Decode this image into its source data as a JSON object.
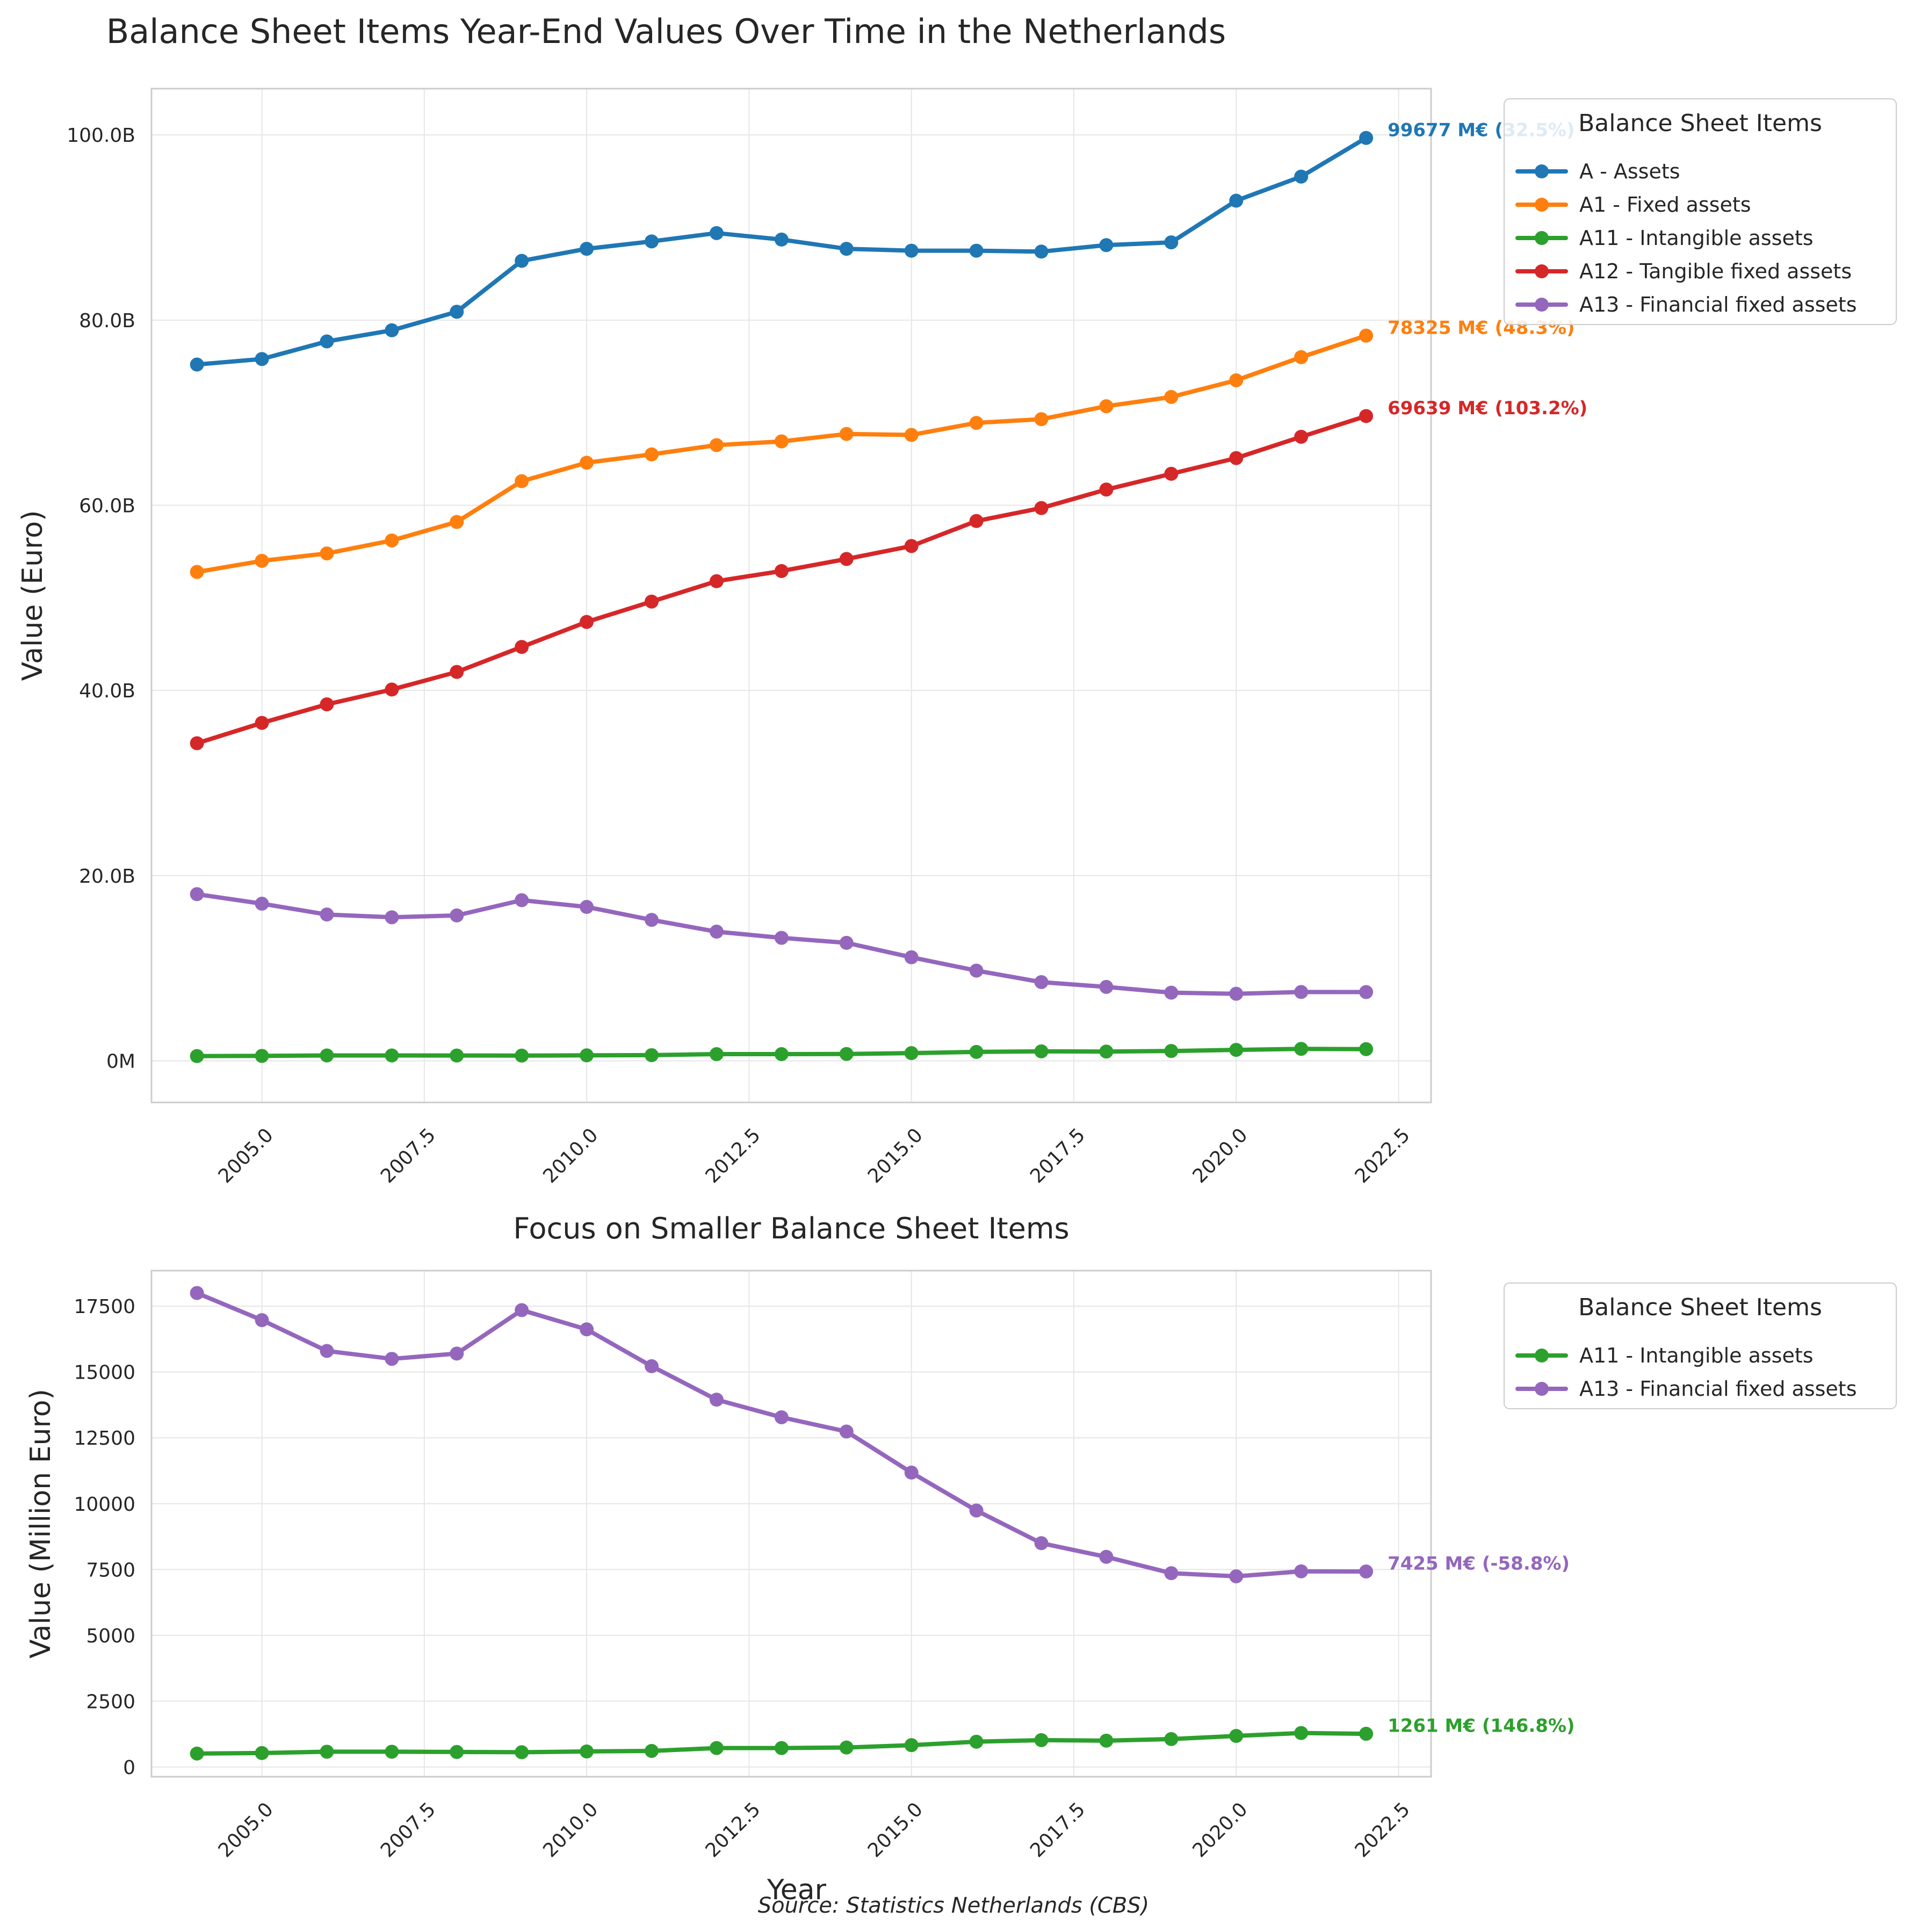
{
  "source_note": "Source: Statistics Netherlands (CBS)",
  "chart_data": [
    {
      "type": "line",
      "title": "Balance Sheet Items Year-End Values Over Time in the Netherlands",
      "xlabel": "",
      "ylabel": "Value (Euro)",
      "xlim": [
        2003.3,
        2023.0
      ],
      "ylim": [
        -4500,
        105000
      ],
      "xticks": [
        2005.0,
        2007.5,
        2010.0,
        2012.5,
        2015.0,
        2017.5,
        2020.0,
        2022.5
      ],
      "xtick_labels": [
        "2005.0",
        "2007.5",
        "2010.0",
        "2012.5",
        "2015.0",
        "2017.5",
        "2020.0",
        "2022.5"
      ],
      "yticks": [
        0,
        20000,
        40000,
        60000,
        80000,
        100000
      ],
      "ytick_labels": [
        "0M",
        "20.0B",
        "40.0B",
        "60.0B",
        "80.0B",
        "100.0B"
      ],
      "grid": true,
      "legend": {
        "title": "Balance Sheet Items",
        "placement": "outside upper right"
      },
      "x": [
        2004,
        2005,
        2006,
        2007,
        2008,
        2009,
        2010,
        2011,
        2012,
        2013,
        2014,
        2015,
        2016,
        2017,
        2018,
        2019,
        2020,
        2021,
        2022
      ],
      "series": [
        {
          "name": "A - Assets",
          "color": "#1f77b4",
          "values": [
            75200,
            75800,
            77700,
            78900,
            80900,
            86400,
            87700,
            88500,
            89400,
            88700,
            87700,
            87500,
            87500,
            87400,
            88100,
            88400,
            92900,
            95500,
            99677
          ],
          "annotation": "99677 M€ (32.5%)"
        },
        {
          "name": "A1 - Fixed assets",
          "color": "#ff7f0e",
          "values": [
            52800,
            54000,
            54800,
            56200,
            58200,
            62600,
            64600,
            65500,
            66500,
            66900,
            67700,
            67600,
            68900,
            69300,
            70700,
            71700,
            73500,
            76000,
            78325
          ],
          "annotation": "78325 M€ (48.3%)"
        },
        {
          "name": "A11 - Intangible assets",
          "color": "#2ca02c",
          "values": [
            510,
            530,
            580,
            580,
            570,
            560,
            590,
            610,
            720,
            720,
            740,
            830,
            960,
            1020,
            1000,
            1060,
            1180,
            1290,
            1261
          ]
        },
        {
          "name": "A12 - Tangible fixed assets",
          "color": "#d62728",
          "values": [
            34300,
            36500,
            38500,
            40100,
            42000,
            44700,
            47400,
            49600,
            51800,
            52900,
            54200,
            55600,
            58300,
            59700,
            61700,
            63400,
            65100,
            67400,
            69639
          ],
          "annotation": "69639 M€ (103.2%)"
        },
        {
          "name": "A13 - Financial fixed assets",
          "color": "#9467bd",
          "values": [
            18000,
            16970,
            15800,
            15500,
            15700,
            17350,
            16620,
            15220,
            13950,
            13280,
            12740,
            11180,
            9740,
            8500,
            7980,
            7360,
            7240,
            7430,
            7425
          ]
        }
      ]
    },
    {
      "type": "line",
      "title": "Focus on Smaller Balance Sheet Items",
      "xlabel": "Year",
      "ylabel": "Value (Million Euro)",
      "xlim": [
        2003.3,
        2023.0
      ],
      "ylim": [
        -370,
        18850
      ],
      "xticks": [
        2005.0,
        2007.5,
        2010.0,
        2012.5,
        2015.0,
        2017.5,
        2020.0,
        2022.5
      ],
      "xtick_labels": [
        "2005.0",
        "2007.5",
        "2010.0",
        "2012.5",
        "2015.0",
        "2017.5",
        "2020.0",
        "2022.5"
      ],
      "yticks": [
        0,
        2500,
        5000,
        7500,
        10000,
        12500,
        15000,
        17500
      ],
      "ytick_labels": [
        "0",
        "2500",
        "5000",
        "7500",
        "10000",
        "12500",
        "15000",
        "17500"
      ],
      "grid": true,
      "legend": {
        "title": "Balance Sheet Items",
        "placement": "outside upper right"
      },
      "x": [
        2004,
        2005,
        2006,
        2007,
        2008,
        2009,
        2010,
        2011,
        2012,
        2013,
        2014,
        2015,
        2016,
        2017,
        2018,
        2019,
        2020,
        2021,
        2022
      ],
      "series": [
        {
          "name": "A11 - Intangible assets",
          "color": "#2ca02c",
          "values": [
            510,
            530,
            580,
            580,
            570,
            560,
            590,
            610,
            720,
            720,
            740,
            830,
            960,
            1020,
            1000,
            1060,
            1180,
            1290,
            1261
          ],
          "annotation": "1261 M€ (146.8%)"
        },
        {
          "name": "A13 - Financial fixed assets",
          "color": "#9467bd",
          "values": [
            18000,
            16970,
            15800,
            15500,
            15700,
            17350,
            16620,
            15220,
            13950,
            13280,
            12740,
            11180,
            9740,
            8500,
            7980,
            7360,
            7240,
            7430,
            7425
          ],
          "annotation": "7425 M€ (-58.8%)"
        }
      ]
    }
  ]
}
